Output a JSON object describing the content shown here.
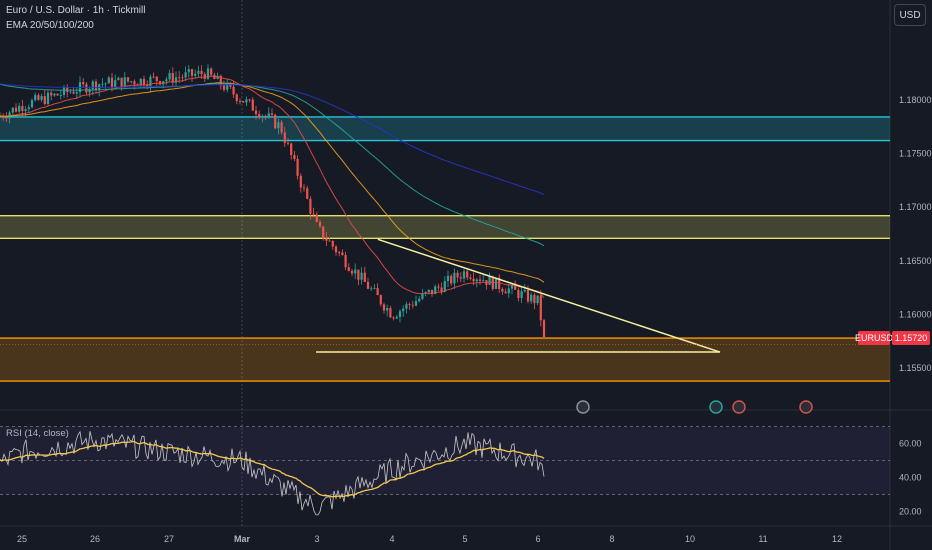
{
  "header": {
    "title": "Euro / U.S. Dollar · 1h · Tickmill",
    "indicator": "EMA 20/50/100/200",
    "currency_button": "USD"
  },
  "price_tags": {
    "symbol": "EURUSD",
    "last": "1.15720"
  },
  "rsi_legend": "RSI (14, close)",
  "colors": {
    "background": "#161a25",
    "up": "#26a69a",
    "down": "#ef5350",
    "ema20": "#e64a4a",
    "ema50": "#f0a020",
    "ema100": "#26a69a",
    "ema200": "#2b33c4",
    "zone_cyan": "#26c6da",
    "zone_yellow": "#e5e06a",
    "zone_orange": "#ff9800",
    "rsi": "#c8c8c8",
    "rsi_ma": "#f2c94c"
  },
  "chart_data": [
    {
      "type": "line",
      "title": "Euro / U.S. Dollar · 1h · Tickmill",
      "y_ticks": [
        "1.18000",
        "1.17500",
        "1.17000",
        "1.16500",
        "1.16000",
        "1.15500"
      ],
      "x_ticks": [
        "25",
        "26",
        "27",
        "Mar",
        "3",
        "4",
        "5",
        "6",
        "8",
        "10",
        "11",
        "12"
      ],
      "ylim": [
        1.1525,
        1.1865
      ],
      "last_price": 1.1572,
      "series": [
        {
          "name": "EURUSD",
          "x": [
            "24",
            "25",
            "26",
            "27",
            "28",
            "Mar",
            "2",
            "3",
            "4",
            "5",
            "6",
            "6"
          ],
          "values": [
            1.1785,
            1.1795,
            1.1815,
            1.182,
            1.1825,
            1.18,
            1.1775,
            1.168,
            1.16,
            1.164,
            1.1612,
            1.1572
          ]
        }
      ],
      "ema_labels": [
        "EMA 20",
        "EMA 50",
        "EMA 100",
        "EMA 200"
      ],
      "zones": [
        {
          "color": "cyan",
          "from": 1.1762,
          "to": 1.1784
        },
        {
          "color": "yellow",
          "from": 1.1671,
          "to": 1.1692
        },
        {
          "color": "orange",
          "from": 1.1538,
          "to": 1.1578
        }
      ],
      "triangle": {
        "upper_start": 1.167,
        "lower": 1.1565,
        "apex_x": "10"
      }
    },
    {
      "type": "line",
      "title": "RSI (14, close)",
      "y_ticks": [
        "60.00",
        "40.00",
        "20.00"
      ],
      "ylim": [
        15,
        75
      ],
      "bands": [
        70,
        50,
        30
      ],
      "series": [
        {
          "name": "RSI",
          "x": [
            "24",
            "25",
            "26",
            "27",
            "Mar",
            "2",
            "3",
            "4",
            "5",
            "6",
            "6"
          ],
          "values": [
            48,
            55,
            62,
            55,
            50,
            35,
            22,
            45,
            60,
            50,
            38
          ]
        }
      ]
    }
  ]
}
